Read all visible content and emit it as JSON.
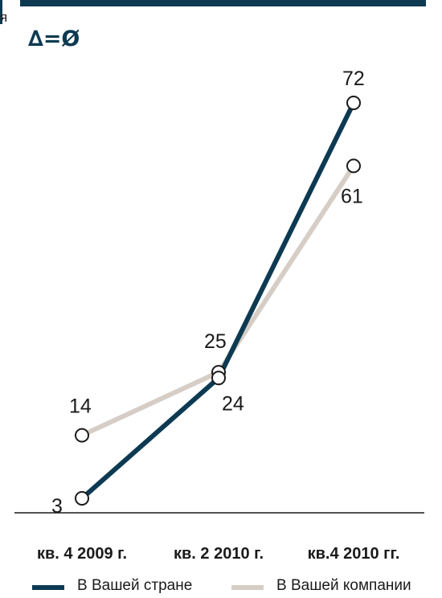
{
  "header": {
    "clipped_text": "я",
    "symbol": "∆=Ø"
  },
  "chart_data": {
    "type": "line",
    "categories": [
      "кв. 4 2009 г.",
      "кв. 2 2010 г.",
      "кв.4 2010 гг."
    ],
    "series": [
      {
        "name": "В Вашей стране",
        "values": [
          3,
          24,
          72
        ],
        "color": "#0d3a52"
      },
      {
        "name": "В Вашей компании",
        "values": [
          14,
          25,
          61
        ],
        "color": "#d6cec6"
      }
    ],
    "ylim": [
      3,
      72
    ],
    "grid": false,
    "legend": "bottom"
  }
}
